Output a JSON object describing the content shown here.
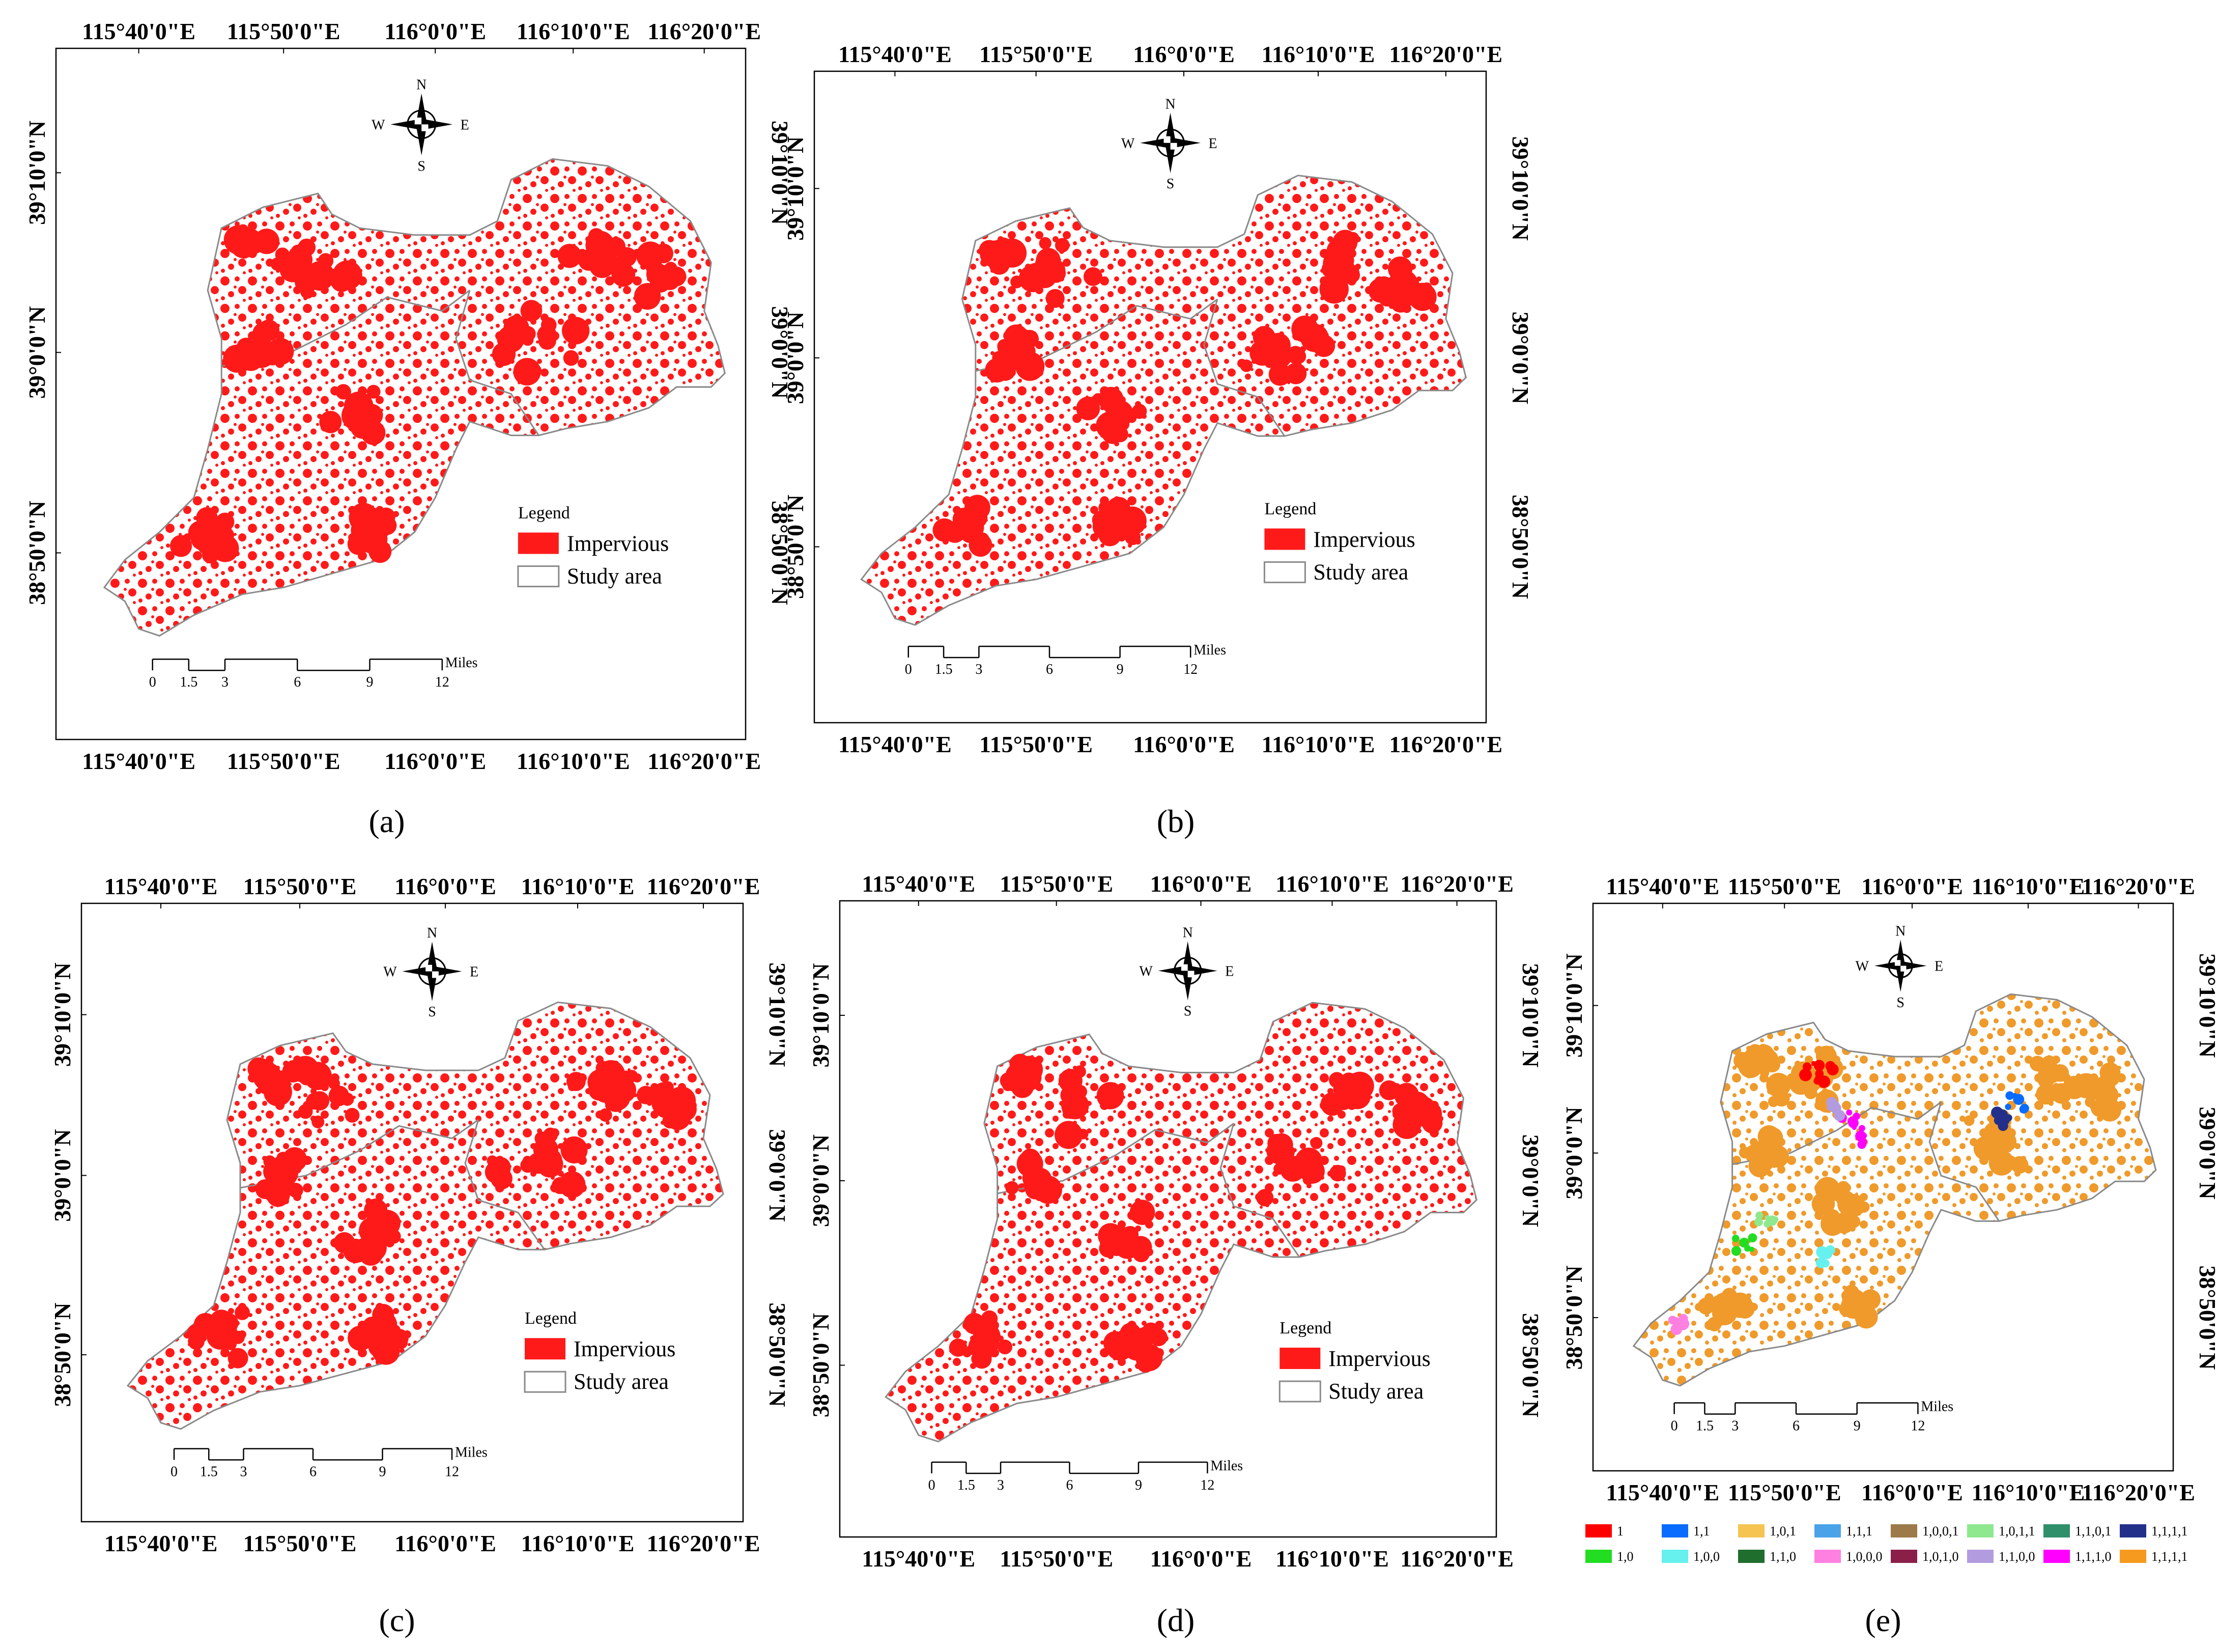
{
  "lon_labels": [
    "115°40'0\"E",
    "115°50'0\"E",
    "116°0'0\"E",
    "116°10'0\"E",
    "116°20'0\"E"
  ],
  "lat_labels": [
    "39°10'0\"N",
    "39°0'0\"N",
    "38°50'0\"N"
  ],
  "compass": {
    "n": "N",
    "s": "S",
    "e": "E",
    "w": "W"
  },
  "legend": {
    "title": "Legend",
    "impervious": "Impervious",
    "study_area": "Study area"
  },
  "scalebar": {
    "unit": "Miles",
    "ticks": [
      "0",
      "1.5",
      "3",
      "6",
      "9",
      "12"
    ]
  },
  "captions": {
    "a": "(a)",
    "b": "(b)",
    "c": "(c)",
    "d": "(d)",
    "e": "(e)"
  },
  "colors": {
    "impervious": "#ff1a1a",
    "boundary": "#8a8a8a",
    "orange": "#ef9a2a"
  },
  "class_legend": [
    {
      "label": "1",
      "color": "#ff0000"
    },
    {
      "label": "1,1",
      "color": "#0a6cff"
    },
    {
      "label": "1,0,1",
      "color": "#f5c451"
    },
    {
      "label": "1,1,1",
      "color": "#4aa3e8"
    },
    {
      "label": "1,0,0,1",
      "color": "#9c7a4a"
    },
    {
      "label": "1,0,1,1",
      "color": "#8ee88e"
    },
    {
      "label": "1,1,0,1",
      "color": "#2f8f6a"
    },
    {
      "label": "1,1,1,1",
      "color": "#23308a"
    },
    {
      "label": "1,0",
      "color": "#22dd22"
    },
    {
      "label": "1,0,0",
      "color": "#66f0ee"
    },
    {
      "label": "1,1,0",
      "color": "#1f6e2e"
    },
    {
      "label": "1,0,0,0",
      "color": "#ff80e0"
    },
    {
      "label": "1,0,1,0",
      "color": "#8a1f4a"
    },
    {
      "label": "1,1,0,0",
      "color": "#b39be0"
    },
    {
      "label": "1,1,1,0",
      "color": "#ff00ff"
    },
    {
      "label": "1,1,1,1",
      "color": "#f59a1e"
    }
  ]
}
